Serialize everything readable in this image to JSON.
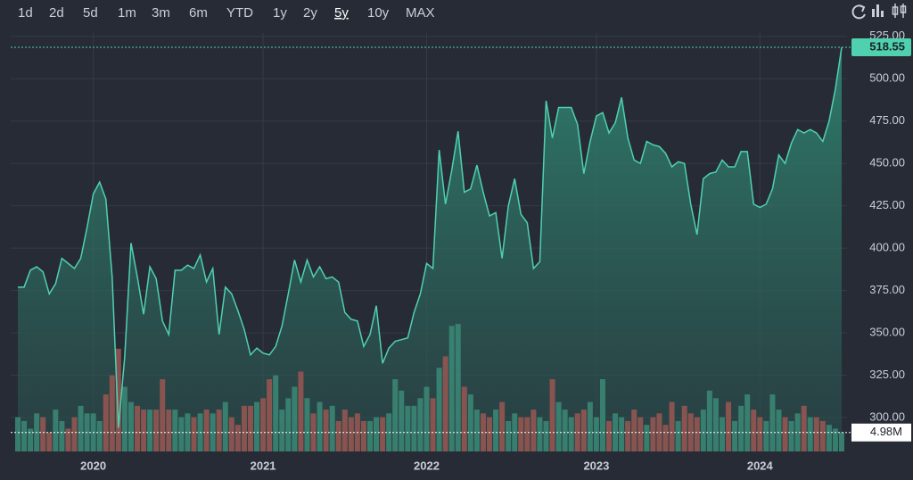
{
  "toolbar": {
    "ranges": [
      "1d",
      "2d",
      "5d",
      "1m",
      "3m",
      "6m",
      "YTD",
      "1y",
      "2y",
      "5y",
      "10y",
      "MAX"
    ],
    "active_range": 9
  },
  "chart_data": {
    "type": "area",
    "categories": [
      null,
      null,
      null,
      null,
      null,
      null,
      null,
      null,
      null,
      null,
      null,
      null,
      "2020",
      null,
      null,
      null,
      null,
      null,
      null,
      null,
      null,
      null,
      null,
      null,
      null,
      null,
      null,
      null,
      null,
      null,
      null,
      null,
      null,
      null,
      null,
      null,
      null,
      null,
      null,
      "2021",
      null,
      null,
      null,
      null,
      null,
      null,
      null,
      null,
      null,
      null,
      null,
      null,
      null,
      null,
      null,
      null,
      null,
      null,
      null,
      null,
      null,
      null,
      null,
      null,
      null,
      "2022",
      null,
      null,
      null,
      null,
      null,
      null,
      null,
      null,
      null,
      null,
      null,
      null,
      null,
      null,
      null,
      null,
      null,
      null,
      null,
      null,
      null,
      null,
      null,
      null,
      null,
      null,
      "2023",
      null,
      null,
      null,
      null,
      null,
      null,
      null,
      null,
      null,
      null,
      null,
      null,
      null,
      null,
      null,
      null,
      null,
      null,
      null,
      null,
      null,
      null,
      null,
      null,
      null,
      "2024",
      null,
      null,
      null,
      null,
      null,
      null,
      null,
      null,
      null,
      null,
      null,
      null,
      null
    ],
    "series": [
      {
        "color": "#4fd1b0",
        "values": [
          377,
          377,
          387,
          389,
          386,
          373,
          379,
          394,
          391,
          388,
          394,
          412,
          432,
          439,
          429,
          383,
          294,
          336,
          403,
          383,
          361,
          389,
          382,
          357,
          349,
          387,
          387,
          390,
          388,
          396,
          380,
          388,
          349,
          377,
          373,
          363,
          352,
          337,
          341,
          338,
          337,
          342,
          354,
          373,
          393,
          380,
          393,
          383,
          389,
          382,
          383,
          380,
          362,
          358,
          357,
          342,
          349,
          366,
          332,
          341,
          345,
          346,
          347,
          362,
          373,
          391,
          388,
          458,
          426,
          446,
          469,
          433,
          435,
          449,
          433,
          419,
          421,
          394,
          425,
          441,
          420,
          415,
          388,
          392,
          487,
          465,
          483,
          483,
          483,
          473,
          444,
          463,
          478,
          480,
          468,
          474,
          489,
          465,
          452,
          450,
          463,
          461,
          460,
          456,
          448,
          451,
          450,
          426,
          408,
          441,
          444,
          445,
          452,
          448,
          448,
          457,
          457,
          426,
          424,
          426,
          435,
          455,
          450,
          462,
          470,
          468,
          470,
          468,
          463,
          475,
          494,
          518.55
        ]
      },
      {
        "type": "bar",
        "axis": "y2",
        "color_up": "#3b8a77",
        "color_down": "#9a5752",
        "values": [
          9,
          8,
          6,
          10,
          9,
          5,
          11,
          8,
          6,
          9,
          12,
          10,
          10,
          8,
          15,
          20,
          27,
          17,
          13,
          12,
          11,
          11,
          11,
          19,
          11,
          11,
          9,
          10,
          9,
          10,
          11,
          10,
          11,
          13,
          9,
          7,
          12,
          12,
          13,
          14,
          19,
          20,
          11,
          14,
          17,
          21,
          14,
          10,
          13,
          11,
          12,
          8,
          11,
          9,
          10,
          8,
          8,
          9,
          9,
          10,
          19,
          16,
          12,
          12,
          14,
          17,
          14,
          22,
          25,
          33,
          33.5,
          17,
          15,
          11,
          10,
          9,
          11,
          13,
          8,
          10,
          9,
          9,
          11,
          9,
          8,
          19,
          13,
          11,
          9,
          10,
          11,
          13,
          9,
          19,
          8,
          10,
          9,
          8,
          11,
          9,
          7,
          9,
          10,
          7,
          13,
          8,
          12,
          10,
          9,
          11,
          16,
          14,
          9,
          13,
          8,
          12,
          15,
          11,
          9,
          8,
          15,
          11,
          9,
          8,
          10,
          12,
          9,
          9,
          8,
          7,
          6,
          4.98
        ],
        "value_labels": [
          null,
          null,
          null,
          null,
          null,
          null,
          null,
          null,
          null,
          null,
          null,
          null,
          null,
          null,
          null,
          null,
          null,
          null,
          null,
          null,
          null,
          null,
          null,
          null,
          null,
          null,
          null,
          null,
          null,
          null,
          null,
          null,
          null,
          null,
          null,
          null,
          null,
          null,
          null,
          null,
          null,
          null,
          null,
          null,
          null,
          null,
          null,
          null,
          null,
          null,
          null,
          null,
          null,
          null,
          null,
          null,
          null,
          null,
          null,
          null,
          null,
          null,
          null,
          null,
          null,
          null,
          null,
          null,
          null,
          null,
          null,
          null,
          null,
          null,
          null,
          null,
          null,
          null,
          null,
          null,
          null,
          null,
          null,
          null,
          null,
          null,
          null,
          null,
          null,
          null,
          null,
          null,
          null,
          null,
          null,
          null,
          null,
          null,
          null,
          null,
          null,
          null,
          null,
          null,
          null,
          null,
          null,
          null,
          null,
          null,
          null,
          null,
          null,
          null,
          null,
          null,
          null,
          null,
          null,
          null,
          null,
          null,
          null,
          null,
          null,
          null,
          null,
          null,
          null,
          null,
          null,
          "4.98M"
        ]
      }
    ],
    "ylim": [
      280,
      527
    ],
    "yticks": [
      {
        "value": 300,
        "label": "300.00"
      },
      {
        "value": 325,
        "label": "325.00"
      },
      {
        "value": 350,
        "label": "350.00"
      },
      {
        "value": 375,
        "label": "375.00"
      },
      {
        "value": 400,
        "label": "400.00"
      },
      {
        "value": 425,
        "label": "425.00"
      },
      {
        "value": 450,
        "label": "450.00"
      },
      {
        "value": 475,
        "label": "475.00"
      },
      {
        "value": 500,
        "label": "500.00"
      },
      {
        "value": 525,
        "label": "525.00"
      }
    ],
    "y2lim": [
      0,
      110
    ],
    "grid": true
  }
}
